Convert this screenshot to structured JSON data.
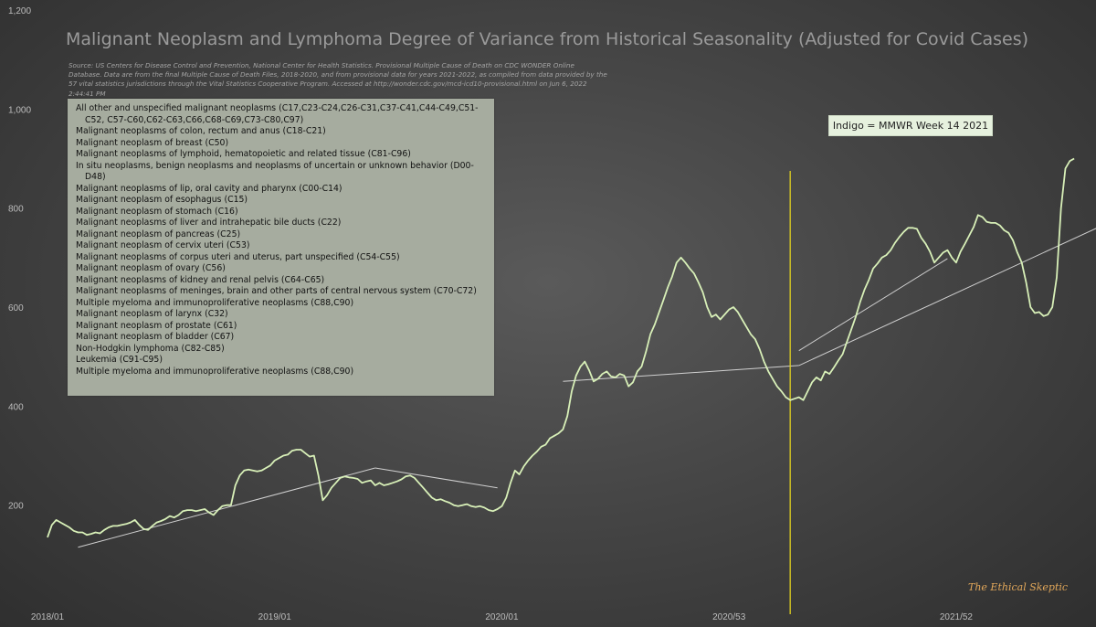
{
  "title": "Malignant Neoplasm and Lymphoma Degree of Variance from Historical Seasonality (Adjusted for Covid Cases)",
  "source": "Source: US Centers for Disease Control and Prevention, National Center for Health Statistics. Provisional Multiple Cause of Death on CDC WONDER Online Database. Data are from the final Multiple Cause of Death Files, 2018-2020, and from provisional data for years 2021-2022, as compiled from data provided by the 57 vital statistics jurisdictions through the Vital Statistics Cooperative Program. Accessed at http://wonder.cdc.gov/mcd-icd10-provisional.html on Jun 6, 2022 2:44:41 PM",
  "legend_items": [
    "All other and unspecified malignant neoplasms (C17,C23-C24,C26-C31,C37-C41,C44-C49,C51-C52, C57-C60,C62-C63,C66,C68-C69,C73-C80,C97)",
    "Malignant neoplasms of colon, rectum and anus (C18-C21)",
    "Malignant neoplasm of breast (C50)",
    "Malignant neoplasms of lymphoid, hematopoietic and related tissue (C81-C96)",
    "In situ neoplasms, benign neoplasms and neoplasms of uncertain or unknown behavior (D00-D48)",
    "Malignant neoplasms of lip, oral cavity and pharynx (C00-C14)",
    "Malignant neoplasm of esophagus (C15)",
    "Malignant neoplasm of stomach (C16)",
    "Malignant neoplasms of liver and intrahepatic bile ducts (C22)",
    "Malignant neoplasm of pancreas (C25)",
    "Malignant neoplasm of cervix uteri (C53)",
    "Malignant neoplasms of corpus uteri and uterus, part unspecified (C54-C55)",
    "Malignant neoplasm of ovary (C56)",
    "Malignant neoplasms of kidney and renal pelvis (C64-C65)",
    "Malignant neoplasms of meninges, brain and other parts of central nervous system (C70-C72)",
    "Multiple myeloma and immunoproliferative neoplasms (C88,C90)",
    "Malignant neoplasm of larynx (C32)",
    "Malignant neoplasm of prostate (C61)",
    "Malignant neoplasm of bladder (C67)",
    "Non-Hodgkin lymphoma (C82-C85)",
    "Leukemia (C91-C95)",
    "Multiple myeloma and immunoproliferative neoplasms (C88,C90)"
  ],
  "callout": "Indigo = MMWR Week 14 2021",
  "signature": "The Ethical Skeptic",
  "colors": {
    "line": "#d8f0b8",
    "trend": "#d0d0d0",
    "marker": "#e0d020",
    "legend_bg": "#a6ac9f",
    "callout_bg": "#e6f1de"
  },
  "chart_data": {
    "type": "line",
    "title": "Malignant Neoplasm and Lymphoma Degree of Variance from Historical Seasonality (Adjusted for Covid Cases)",
    "xlabel": "",
    "ylabel": "",
    "ylim": [
      0,
      1200
    ],
    "yticks": [
      200,
      400,
      600,
      800,
      1000,
      1200
    ],
    "ytick_labels": [
      "200",
      "400",
      "600",
      "800",
      "1,000",
      "1,200"
    ],
    "x_unit": "MMWR week index (week 1 = 2018/01)",
    "xlim": [
      1,
      241
    ],
    "xticks": [
      1,
      53,
      105,
      157,
      209
    ],
    "xtick_labels": [
      "2018/01",
      "2019/01",
      "2020/01",
      "2020/53",
      "2021/52"
    ],
    "grid": false,
    "legend_position": "top-left",
    "marker_week": 171,
    "marker_label": "Indigo = MMWR Week 14 2021",
    "series": [
      {
        "values": [
          135,
          160,
          170,
          165,
          160,
          155,
          148,
          145,
          145,
          140,
          142,
          145,
          143,
          150,
          155,
          158,
          158,
          160,
          162,
          165,
          170,
          160,
          152,
          150,
          158,
          165,
          168,
          172,
          178,
          175,
          180,
          188,
          190,
          190,
          188,
          190,
          192,
          185,
          180,
          190,
          198,
          200,
          200,
          240,
          260,
          270,
          272,
          270,
          268,
          270,
          275,
          280,
          290,
          295,
          300,
          302,
          310,
          312,
          312,
          305,
          298,
          300,
          260,
          210,
          220,
          235,
          245,
          255,
          258,
          256,
          255,
          253,
          245,
          248,
          250,
          240,
          245,
          240,
          242,
          245,
          248,
          252,
          258,
          260,
          255,
          245,
          235,
          225,
          215,
          210,
          212,
          208,
          205,
          200,
          198,
          200,
          202,
          198,
          196,
          198,
          195,
          190,
          188,
          192,
          198,
          215,
          245,
          270,
          262,
          278,
          290,
          300,
          308,
          318,
          322,
          335,
          340,
          345,
          353,
          380,
          430,
          462,
          480,
          490,
          472,
          450,
          455,
          465,
          470,
          460,
          458,
          465,
          462,
          440,
          448,
          470,
          480,
          510,
          545,
          565,
          590,
          615,
          640,
          662,
          690,
          700,
          690,
          678,
          668,
          650,
          630,
          600,
          580,
          585,
          575,
          585,
          595,
          600,
          590,
          575,
          560,
          545,
          535,
          515,
          490,
          470,
          455,
          440,
          430,
          418,
          412,
          415,
          418,
          412,
          430,
          448,
          458,
          452,
          470,
          465,
          478,
          492,
          505,
          530,
          555,
          580,
          610,
          635,
          655,
          678,
          688,
          700,
          705,
          715,
          730,
          742,
          752,
          760,
          760,
          758,
          740,
          728,
          712,
          690,
          700,
          710,
          715,
          700,
          690,
          712,
          728,
          745,
          762,
          786,
          782,
          772,
          770,
          770,
          765,
          755,
          750,
          735,
          710,
          690,
          650,
          600,
          588,
          590,
          582,
          585,
          600,
          660,
          800,
          880,
          895,
          900
        ]
      }
    ],
    "trend_lines": [
      {
        "from": [
          8,
          115
        ],
        "to": [
          76,
          275
        ]
      },
      {
        "from": [
          76,
          275
        ],
        "to": [
          104,
          235
        ]
      },
      {
        "from": [
          119,
          450
        ],
        "to": [
          173,
          482
        ]
      },
      {
        "from": [
          173,
          482
        ],
        "to": [
          242,
          763
        ]
      },
      {
        "from": [
          173,
          512
        ],
        "to": [
          207,
          698
        ]
      }
    ]
  }
}
